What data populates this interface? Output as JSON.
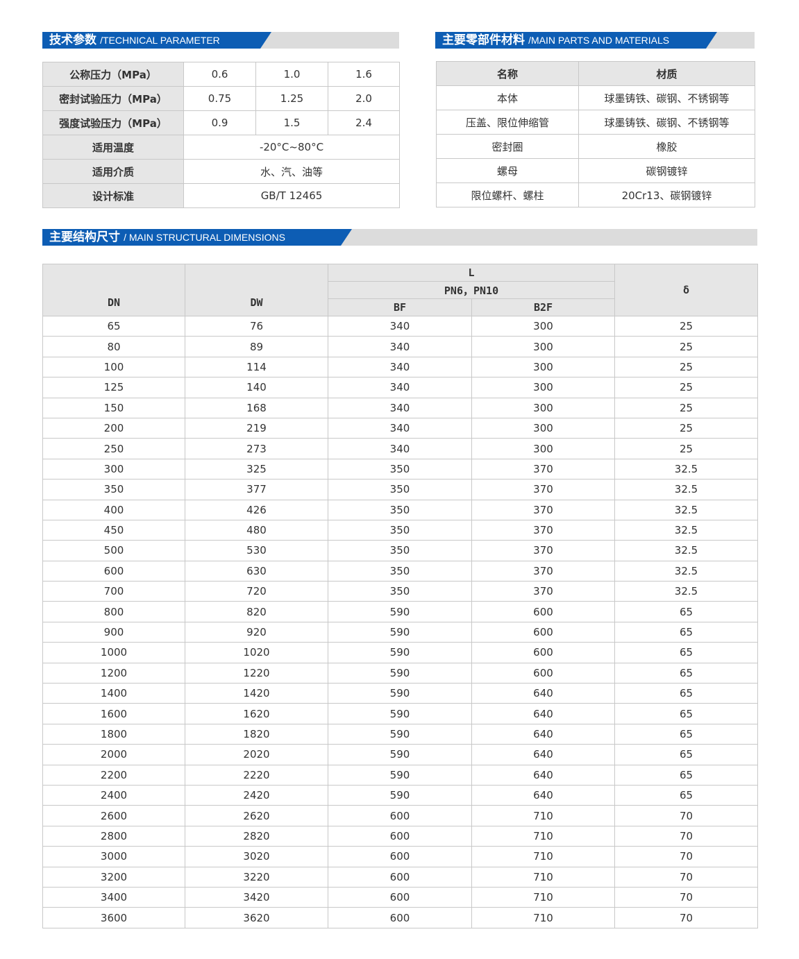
{
  "sections": {
    "technical": {
      "cn": "技术参数",
      "en": "/TECHNICAL PARAMETER"
    },
    "materials": {
      "cn": "主要零部件材料",
      "en": "/MAIN PARTS AND MATERIALS"
    },
    "dimensions": {
      "cn": "主要结构尺寸",
      "en": "/ MAIN STRUCTURAL DIMENSIONS"
    }
  },
  "technical_table": {
    "rows": [
      {
        "label": "公称压力（MPa）",
        "values": [
          "0.6",
          "1.0",
          "1.6"
        ]
      },
      {
        "label": "密封试验压力（MPa）",
        "values": [
          "0.75",
          "1.25",
          "2.0"
        ]
      },
      {
        "label": "强度试验压力（MPa）",
        "values": [
          "0.9",
          "1.5",
          "2.4"
        ]
      },
      {
        "label": "适用温度",
        "values": [
          "-20°C~80°C"
        ]
      },
      {
        "label": "适用介质",
        "values": [
          "水、汽、油等"
        ]
      },
      {
        "label": "设计标准",
        "values": [
          "GB/T 12465"
        ]
      }
    ]
  },
  "materials_table": {
    "headers": [
      "名称",
      "材质"
    ],
    "rows": [
      [
        "本体",
        "球墨铸铁、碳钢、不锈钢等"
      ],
      [
        "压盖、限位伸缩管",
        "球墨铸铁、碳钢、不锈钢等"
      ],
      [
        "密封圈",
        "橡胶"
      ],
      [
        "螺母",
        "碳钢镀锌"
      ],
      [
        "限位螺杆、螺柱",
        "20Cr13、碳钢镀锌"
      ]
    ]
  },
  "dimensions_table": {
    "headers": {
      "dn": "DN",
      "dw": "DW",
      "l": "L",
      "pn": "PN6，PN10",
      "bf": "BF",
      "b2f": "B2F",
      "delta": "δ"
    },
    "rows": [
      [
        "65",
        "76",
        "340",
        "300",
        "25"
      ],
      [
        "80",
        "89",
        "340",
        "300",
        "25"
      ],
      [
        "100",
        "114",
        "340",
        "300",
        "25"
      ],
      [
        "125",
        "140",
        "340",
        "300",
        "25"
      ],
      [
        "150",
        "168",
        "340",
        "300",
        "25"
      ],
      [
        "200",
        "219",
        "340",
        "300",
        "25"
      ],
      [
        "250",
        "273",
        "340",
        "300",
        "25"
      ],
      [
        "300",
        "325",
        "350",
        "370",
        "32.5"
      ],
      [
        "350",
        "377",
        "350",
        "370",
        "32.5"
      ],
      [
        "400",
        "426",
        "350",
        "370",
        "32.5"
      ],
      [
        "450",
        "480",
        "350",
        "370",
        "32.5"
      ],
      [
        "500",
        "530",
        "350",
        "370",
        "32.5"
      ],
      [
        "600",
        "630",
        "350",
        "370",
        "32.5"
      ],
      [
        "700",
        "720",
        "350",
        "370",
        "32.5"
      ],
      [
        "800",
        "820",
        "590",
        "600",
        "65"
      ],
      [
        "900",
        "920",
        "590",
        "600",
        "65"
      ],
      [
        "1000",
        "1020",
        "590",
        "600",
        "65"
      ],
      [
        "1200",
        "1220",
        "590",
        "600",
        "65"
      ],
      [
        "1400",
        "1420",
        "590",
        "640",
        "65"
      ],
      [
        "1600",
        "1620",
        "590",
        "640",
        "65"
      ],
      [
        "1800",
        "1820",
        "590",
        "640",
        "65"
      ],
      [
        "2000",
        "2020",
        "590",
        "640",
        "65"
      ],
      [
        "2200",
        "2220",
        "590",
        "640",
        "65"
      ],
      [
        "2400",
        "2420",
        "590",
        "640",
        "65"
      ],
      [
        "2600",
        "2620",
        "600",
        "710",
        "70"
      ],
      [
        "2800",
        "2820",
        "600",
        "710",
        "70"
      ],
      [
        "3000",
        "3020",
        "600",
        "710",
        "70"
      ],
      [
        "3200",
        "3220",
        "600",
        "710",
        "70"
      ],
      [
        "3400",
        "3420",
        "600",
        "710",
        "70"
      ],
      [
        "3600",
        "3620",
        "600",
        "710",
        "70"
      ]
    ]
  },
  "colors": {
    "accent": "#0d5db4",
    "header_bg": "#e6e6e6",
    "bar_bg": "#dcdcdc"
  }
}
